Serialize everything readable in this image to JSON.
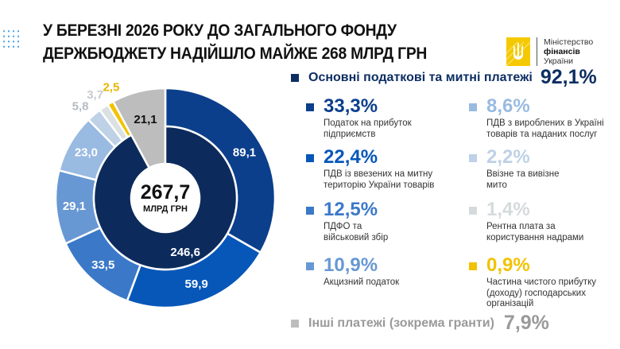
{
  "header": {
    "title_line1": "У БЕРЕЗНІ 2026 РОКУ ДО ЗАГАЛЬНОГО ФОНДУ",
    "title_line2": "ДЕРЖБЮДЖЕТУ НАДІЙШЛО МАЙЖЕ 268 МЛРД ГРН"
  },
  "logo": {
    "line1": "Міністерство",
    "line2": "фінансів",
    "line3": "України",
    "color": "#f5c900"
  },
  "chart_data": {
    "type": "pie",
    "center": {
      "value": "267,7",
      "unit": "МЛРД ГРН"
    },
    "outer_ring": [
      {
        "value": 89.1,
        "label": "89,1",
        "color": "#0b3f8c"
      },
      {
        "value": 59.9,
        "label": "59,9",
        "color": "#0757b9"
      },
      {
        "value": 33.5,
        "label": "33,5",
        "color": "#3b79c8"
      },
      {
        "value": 29.1,
        "label": "29,1",
        "color": "#6898d3"
      },
      {
        "value": 23.0,
        "label": "23,0",
        "color": "#99bae1"
      },
      {
        "value": 5.8,
        "label": "5,8",
        "color": "#bed1e7"
      },
      {
        "value": 3.7,
        "label": "3,7",
        "color": "#dbe0e2"
      },
      {
        "value": 2.5,
        "label": "2,5",
        "color": "#f2c200"
      }
    ],
    "inner_ring": [
      {
        "value": 246.6,
        "label": "246,6",
        "color": "#0c2b5c"
      }
    ],
    "other": {
      "value": 21.1,
      "label": "21,1",
      "color": "#bdbdbd"
    }
  },
  "legend": {
    "main": {
      "label": "Основні податкові та митні платежі",
      "pct": "92,1%",
      "color": "#0d2e63"
    },
    "items": [
      {
        "pct": "33,3%",
        "desc": [
          "Податок на прибуток",
          "підприємств"
        ],
        "color": "#0b3f8c"
      },
      {
        "pct": "22,4%",
        "desc": [
          "ПДВ із ввезених на митну",
          "територію України товарів"
        ],
        "color": "#0757b9"
      },
      {
        "pct": "12,5%",
        "desc": [
          "ПДФО та",
          "військовий збір"
        ],
        "color": "#3b79c8"
      },
      {
        "pct": "10,9%",
        "desc": [
          "Акцизний податок"
        ],
        "color": "#6898d3"
      },
      {
        "pct": "8,6%",
        "desc": [
          "ПДВ з вироблених в Україні",
          "товарів та наданих послуг"
        ],
        "color": "#99bae1"
      },
      {
        "pct": "2,2%",
        "desc": [
          "Ввізне та вивізне",
          "мито"
        ],
        "color": "#bed1e7"
      },
      {
        "pct": "1,4%",
        "desc": [
          "Рентна плата за",
          "користування надрами"
        ],
        "color": "#d5dadc"
      },
      {
        "pct": "0,9%",
        "desc": [
          "Частина чистого прибутку",
          "(доходу) господарських",
          "організацій"
        ],
        "color": "#f2c200"
      }
    ],
    "other": {
      "label": "Інші платежі (зокрема гранти)",
      "pct": "7,9%",
      "color": "#9a9a9a"
    }
  }
}
